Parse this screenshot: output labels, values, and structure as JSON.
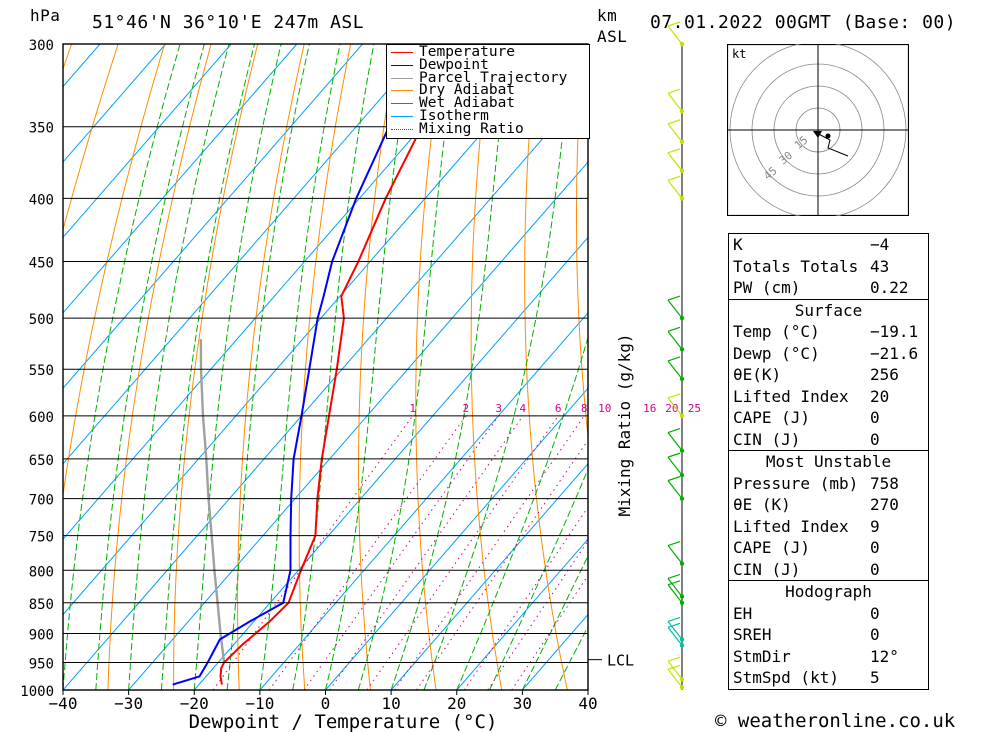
{
  "header": {
    "hpa_label": "hPa",
    "location": "51°46'N  36°10'E  247m  ASL",
    "km_label": "km",
    "asl_label": "ASL",
    "datetime": "07.01.2022  00GMT  (Base: 00)"
  },
  "legend": {
    "items": [
      {
        "label": "Temperature",
        "color": "#ff0000",
        "style": "solid"
      },
      {
        "label": "Dewpoint",
        "color": "#0000ff",
        "style": "solid"
      },
      {
        "label": "Parcel Trajectory",
        "color": "#a0a0a0",
        "style": "solid"
      },
      {
        "label": "Dry Adiabat",
        "color": "#ff8c00",
        "style": "solid"
      },
      {
        "label": "Wet Adiabat",
        "color": "#00b000",
        "style": "solid"
      },
      {
        "label": "Isotherm",
        "color": "#00a0ff",
        "style": "solid"
      },
      {
        "label": "Mixing Ratio",
        "color": "#d0008c",
        "style": "dotted"
      }
    ]
  },
  "chart_data": {
    "type": "skew-t",
    "xlabel": "Dewpoint / Temperature (°C)",
    "ylabel": "hPa",
    "mixing_ratio_axis_label": "Mixing Ratio (g/kg)",
    "x_ticks": [
      "−40",
      "−30",
      "−20",
      "−10",
      "0",
      "10",
      "20",
      "30",
      "40"
    ],
    "x_tick_values": [
      -40,
      -30,
      -20,
      -10,
      0,
      10,
      20,
      30,
      40
    ],
    "pressure_levels": [
      300,
      350,
      400,
      450,
      500,
      550,
      600,
      650,
      700,
      750,
      800,
      850,
      900,
      950,
      1000
    ],
    "mixing_ratio_labels": [
      "1",
      "2",
      "3",
      "4",
      "6",
      "8",
      "10",
      "16",
      "20",
      "25"
    ],
    "mixing_ratio_values": [
      1,
      2,
      3,
      4,
      6,
      8,
      10,
      16,
      20,
      25
    ],
    "lcl_label": "LCL",
    "lcl_pressure": 945,
    "temperature_profile": [
      {
        "p": 990,
        "t": -16.5
      },
      {
        "p": 975,
        "t": -17.8
      },
      {
        "p": 960,
        "t": -18.8
      },
      {
        "p": 950,
        "t": -19.1
      },
      {
        "p": 920,
        "t": -18.7
      },
      {
        "p": 880,
        "t": -17.6
      },
      {
        "p": 850,
        "t": -17.2
      },
      {
        "p": 800,
        "t": -19.6
      },
      {
        "p": 750,
        "t": -22.0
      },
      {
        "p": 700,
        "t": -26.6
      },
      {
        "p": 650,
        "t": -31.2
      },
      {
        "p": 600,
        "t": -35.8
      },
      {
        "p": 550,
        "t": -40.8
      },
      {
        "p": 500,
        "t": -46.5
      },
      {
        "p": 480,
        "t": -49.8
      },
      {
        "p": 450,
        "t": -51.8
      },
      {
        "p": 400,
        "t": -56.0
      },
      {
        "p": 350,
        "t": -60.0
      },
      {
        "p": 330,
        "t": -60.5
      },
      {
        "p": 300,
        "t": -59.0
      }
    ],
    "dewpoint_profile": [
      {
        "p": 990,
        "t": -24.0
      },
      {
        "p": 975,
        "t": -21.0
      },
      {
        "p": 950,
        "t": -21.6
      },
      {
        "p": 910,
        "t": -22.8
      },
      {
        "p": 880,
        "t": -20.6
      },
      {
        "p": 850,
        "t": -18.0
      },
      {
        "p": 800,
        "t": -21.2
      },
      {
        "p": 750,
        "t": -25.8
      },
      {
        "p": 700,
        "t": -30.6
      },
      {
        "p": 650,
        "t": -35.5
      },
      {
        "p": 600,
        "t": -40.0
      },
      {
        "p": 550,
        "t": -45.0
      },
      {
        "p": 500,
        "t": -50.5
      },
      {
        "p": 480,
        "t": -52.5
      },
      {
        "p": 450,
        "t": -55.8
      },
      {
        "p": 400,
        "t": -60.5
      },
      {
        "p": 350,
        "t": -65.0
      },
      {
        "p": 330,
        "t": -66.0
      },
      {
        "p": 300,
        "t": -64.0
      }
    ],
    "parcel_profile": [
      {
        "p": 950,
        "t": -19.1
      },
      {
        "p": 900,
        "t": -23.5
      },
      {
        "p": 850,
        "t": -28.0
      },
      {
        "p": 800,
        "t": -32.8
      },
      {
        "p": 750,
        "t": -37.8
      },
      {
        "p": 700,
        "t": -43.2
      },
      {
        "p": 650,
        "t": -48.8
      },
      {
        "p": 600,
        "t": -55.0
      },
      {
        "p": 550,
        "t": -61.5
      },
      {
        "p": 520,
        "t": -65.5
      }
    ],
    "wind_barb_colors": [
      "#c8e000",
      "#00b000",
      "#00c0a0"
    ]
  },
  "hodograph": {
    "unit_label": "kt",
    "ring_labels": [
      "15",
      "30",
      "45"
    ],
    "ring_values": [
      15,
      30,
      45
    ]
  },
  "indices": {
    "basic": [
      {
        "label": "K",
        "value": "−4"
      },
      {
        "label": "Totals Totals",
        "value": "43"
      },
      {
        "label": "PW (cm)",
        "value": "0.22"
      }
    ],
    "surface": {
      "title": "Surface",
      "rows": [
        {
          "label": "Temp (°C)",
          "value": "−19.1"
        },
        {
          "label": "Dewp (°C)",
          "value": "−21.6"
        },
        {
          "label": "θE(K)",
          "value": "256"
        },
        {
          "label": "Lifted Index",
          "value": "20"
        },
        {
          "label": "CAPE (J)",
          "value": "0"
        },
        {
          "label": "CIN (J)",
          "value": "0"
        }
      ]
    },
    "most_unstable": {
      "title": "Most Unstable",
      "rows": [
        {
          "label": "Pressure (mb)",
          "value": "758"
        },
        {
          "label": "θE (K)",
          "value": "270"
        },
        {
          "label": "Lifted Index",
          "value": "9"
        },
        {
          "label": "CAPE (J)",
          "value": "0"
        },
        {
          "label": "CIN (J)",
          "value": "0"
        }
      ]
    },
    "hodograph": {
      "title": "Hodograph",
      "rows": [
        {
          "label": "EH",
          "value": "0"
        },
        {
          "label": "SREH",
          "value": "0"
        },
        {
          "label": "StmDir",
          "value": "12°"
        },
        {
          "label": "StmSpd (kt)",
          "value": "5"
        }
      ]
    }
  },
  "footer": {
    "copyright": "© weatheronline.co.uk"
  }
}
